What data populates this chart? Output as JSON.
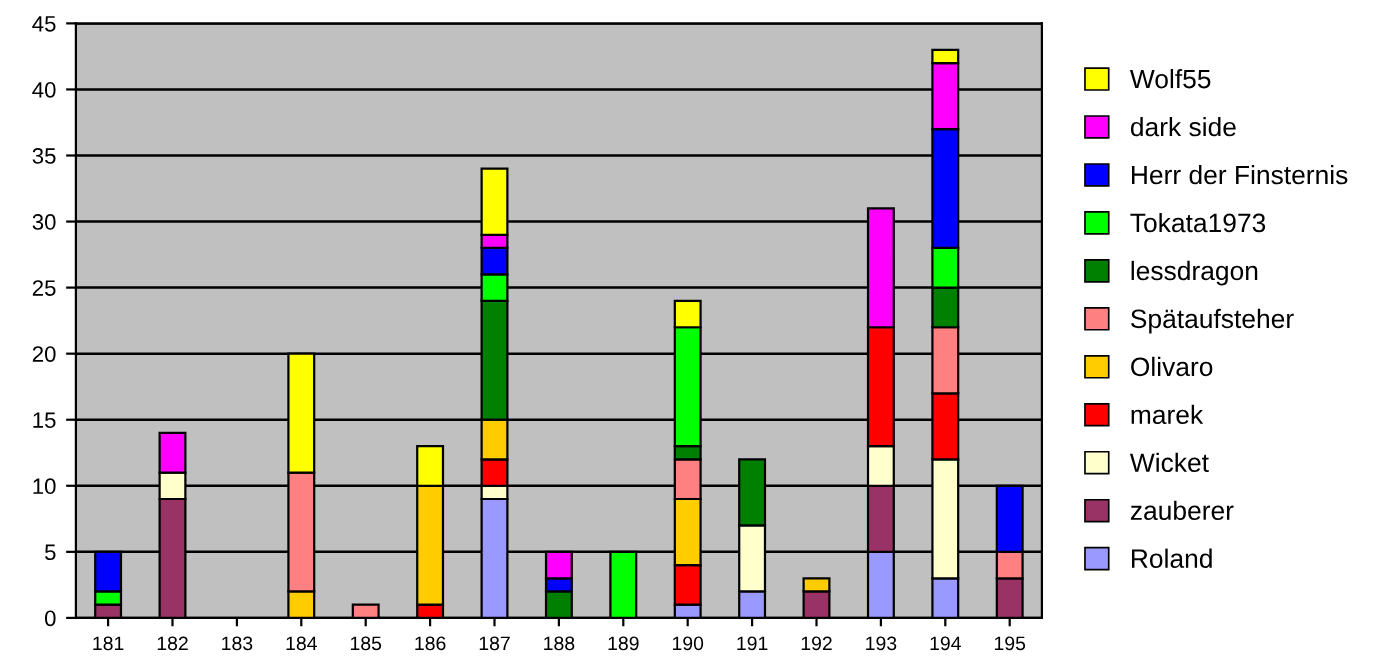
{
  "chart_data": {
    "type": "bar",
    "stacked": true,
    "categories": [
      "181",
      "182",
      "183",
      "184",
      "185",
      "186",
      "187",
      "188",
      "189",
      "190",
      "191",
      "192",
      "193",
      "194",
      "195"
    ],
    "ylim": [
      0,
      45
    ],
    "yticks": [
      0,
      5,
      10,
      15,
      20,
      25,
      30,
      35,
      40,
      45
    ],
    "grid": "y",
    "legend": "right",
    "series": [
      {
        "name": "Roland",
        "color": "#9999ff",
        "values": [
          0,
          0,
          0,
          0,
          0,
          0,
          9,
          0,
          0,
          1,
          2,
          0,
          5,
          3,
          0
        ]
      },
      {
        "name": "zauberer",
        "color": "#993366",
        "values": [
          1,
          9,
          0,
          0,
          0,
          0,
          0,
          0,
          0,
          0,
          0,
          2,
          5,
          0,
          3
        ]
      },
      {
        "name": "Wicket",
        "color": "#ffffcc",
        "values": [
          0,
          2,
          0,
          0,
          0,
          0,
          1,
          0,
          0,
          0,
          5,
          0,
          3,
          9,
          0
        ]
      },
      {
        "name": "marek",
        "color": "#ff0000",
        "values": [
          0,
          0,
          0,
          0,
          0,
          1,
          2,
          0,
          0,
          3,
          0,
          0,
          9,
          5,
          0
        ]
      },
      {
        "name": "Olivaro",
        "color": "#ffcc00",
        "values": [
          0,
          0,
          0,
          2,
          0,
          9,
          3,
          0,
          0,
          5,
          0,
          1,
          0,
          0,
          0
        ]
      },
      {
        "name": "Spätaufsteher",
        "color": "#ff8080",
        "values": [
          0,
          0,
          0,
          9,
          1,
          0,
          0,
          0,
          0,
          3,
          0,
          0,
          0,
          5,
          2
        ]
      },
      {
        "name": "lessdragon",
        "color": "#008000",
        "values": [
          0,
          0,
          0,
          0,
          0,
          0,
          9,
          2,
          0,
          1,
          5,
          0,
          0,
          3,
          0
        ]
      },
      {
        "name": "Tokata1973",
        "color": "#00ff00",
        "values": [
          1,
          0,
          0,
          0,
          0,
          0,
          2,
          0,
          5,
          9,
          0,
          0,
          0,
          3,
          0
        ]
      },
      {
        "name": "Herr der Finsternis",
        "color": "#0000ff",
        "values": [
          3,
          0,
          0,
          0,
          0,
          0,
          2,
          1,
          0,
          0,
          0,
          0,
          0,
          9,
          5
        ]
      },
      {
        "name": "dark side",
        "color": "#ff00ff",
        "values": [
          0,
          3,
          0,
          0,
          0,
          0,
          1,
          2,
          0,
          0,
          0,
          0,
          9,
          5,
          0
        ]
      },
      {
        "name": "Wolf55",
        "color": "#ffff00",
        "values": [
          0,
          0,
          0,
          9,
          0,
          3,
          5,
          0,
          0,
          2,
          0,
          0,
          0,
          1,
          0
        ]
      }
    ]
  }
}
